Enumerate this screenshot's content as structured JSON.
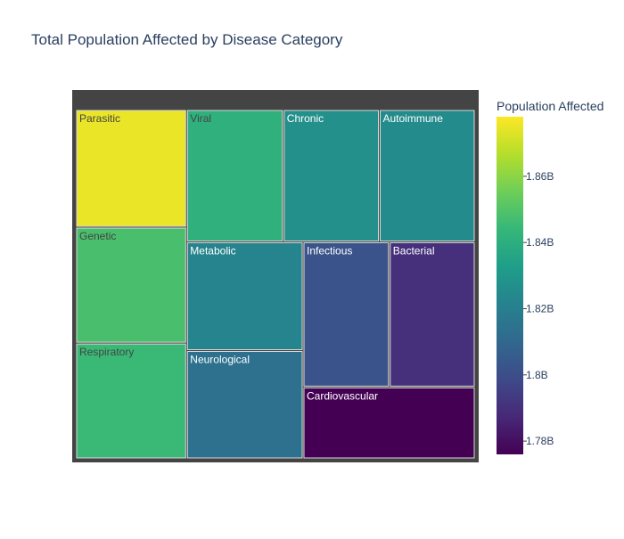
{
  "chart_data": {
    "type": "treemap",
    "title": "Total Population Affected by Disease Category",
    "categories": [
      "Parasitic",
      "Genetic",
      "Respiratory",
      "Viral",
      "Chronic",
      "Autoimmune",
      "Metabolic",
      "Neurological",
      "Infectious",
      "Bacterial",
      "Cardiovascular"
    ],
    "values": [
      1.875,
      1.848,
      1.845,
      1.841,
      1.827,
      1.825,
      1.822,
      1.814,
      1.802,
      1.79,
      1.776
    ],
    "value_unit": "B",
    "colorbar": {
      "title": "Population Affected",
      "range": [
        1.776,
        1.878
      ],
      "colorscale": "Viridis",
      "ticks": [
        1.78,
        1.8,
        1.82,
        1.84,
        1.86
      ],
      "tick_labels": [
        "1.78B",
        "1.8B",
        "1.82B",
        "1.84B",
        "1.86B"
      ]
    },
    "colors": {
      "root_fill": "#444444",
      "tile_border": "#d9d9d9",
      "dark_text": "#444444",
      "light_text": "#ffffff",
      "title_text": "#2a3f5f",
      "tick_text": "#2a3f5f"
    }
  }
}
